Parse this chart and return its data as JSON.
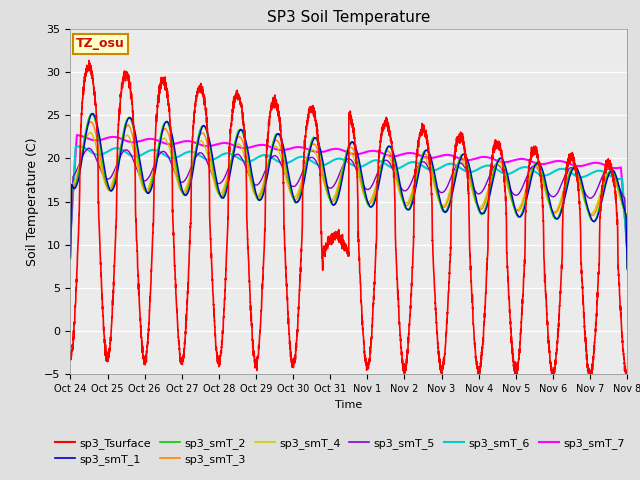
{
  "title": "SP3 Soil Temperature",
  "xlabel": "Time",
  "ylabel": "Soil Temperature (C)",
  "ylim": [
    -5,
    35
  ],
  "xlim": [
    0,
    15
  ],
  "background_color": "#e0e0e0",
  "plot_bg_color": "#e0e0e0",
  "tz_label": "TZ_osu",
  "x_tick_labels": [
    "Oct 24",
    "Oct 25",
    "Oct 26",
    "Oct 27",
    "Oct 28",
    "Oct 29",
    "Oct 30",
    "Oct 31",
    "Nov 1",
    "Nov 2",
    "Nov 3",
    "Nov 4",
    "Nov 5",
    "Nov 6",
    "Nov 7",
    "Nov 8"
  ],
  "series": {
    "sp3_Tsurface": {
      "color": "#ff0000",
      "lw": 1.2
    },
    "sp3_smT_1": {
      "color": "#0000cc",
      "lw": 1.0
    },
    "sp3_smT_2": {
      "color": "#00cc00",
      "lw": 1.0
    },
    "sp3_smT_3": {
      "color": "#ff8800",
      "lw": 1.0
    },
    "sp3_smT_4": {
      "color": "#cccc00",
      "lw": 1.0
    },
    "sp3_smT_5": {
      "color": "#8800cc",
      "lw": 1.0
    },
    "sp3_smT_6": {
      "color": "#00cccc",
      "lw": 1.5
    },
    "sp3_smT_7": {
      "color": "#ff00ff",
      "lw": 1.5
    }
  },
  "legend_ncol": 6,
  "figsize": [
    6.4,
    4.8
  ],
  "dpi": 100
}
